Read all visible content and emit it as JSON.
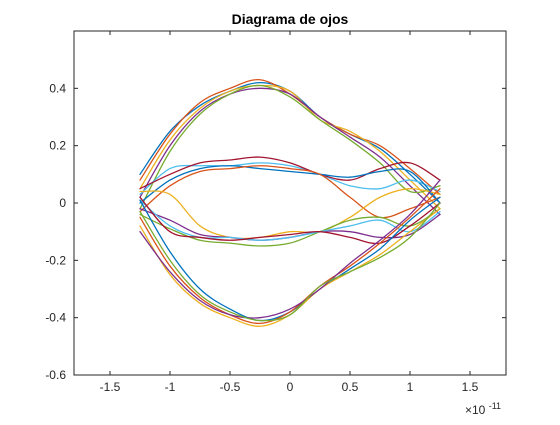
{
  "chart_data": {
    "type": "line",
    "title": "Diagrama de ojos",
    "xlabel": "",
    "ylabel": "",
    "x_multiplier_label": "×10",
    "x_multiplier_exponent": "-11",
    "xlim": [
      -1.8,
      1.8
    ],
    "ylim": [
      -0.6,
      0.6
    ],
    "xticks": [
      -1.5,
      -1,
      -0.5,
      0,
      0.5,
      1,
      1.5
    ],
    "xtick_labels": [
      "-1.5",
      "-1",
      "-0.5",
      "0",
      "0.5",
      "1",
      "1.5"
    ],
    "yticks": [
      -0.6,
      -0.4,
      -0.2,
      0,
      0.2,
      0.4
    ],
    "ytick_labels": [
      "-0.6",
      "-0.4",
      "-0.2",
      "0",
      "0.2",
      "0.4"
    ],
    "grid": false,
    "legend": "none",
    "box": true,
    "line_colors": [
      "#0072BD",
      "#D95319",
      "#EDB120",
      "#7E2F8E",
      "#77AC30",
      "#4DBEEE",
      "#A2142F"
    ],
    "series": [
      {
        "x": [
          -1.25,
          -1.0,
          -0.75,
          -0.5,
          -0.25,
          0.0,
          0.25,
          0.5,
          0.75,
          1.0,
          1.25
        ],
        "values": [
          0.1,
          0.25,
          0.34,
          0.39,
          0.42,
          0.39,
          0.3,
          0.24,
          0.19,
          0.1,
          0.0
        ]
      },
      {
        "x": [
          -1.25,
          -1.0,
          -0.75,
          -0.5,
          -0.25,
          0.0,
          0.25,
          0.5,
          0.75,
          1.0,
          1.25
        ],
        "values": [
          0.08,
          0.24,
          0.35,
          0.4,
          0.43,
          0.38,
          0.3,
          0.24,
          0.2,
          0.12,
          0.03
        ]
      },
      {
        "x": [
          -1.25,
          -1.0,
          -0.75,
          -0.5,
          -0.25,
          0.0,
          0.25,
          0.5,
          0.75,
          1.0,
          1.25
        ],
        "values": [
          0.05,
          0.22,
          0.33,
          0.39,
          0.41,
          0.39,
          0.29,
          0.25,
          0.18,
          0.08,
          -0.02
        ]
      },
      {
        "x": [
          -1.25,
          -1.0,
          -0.75,
          -0.5,
          -0.25,
          0.0,
          0.25,
          0.5,
          0.75,
          1.0,
          1.25
        ],
        "values": [
          0.02,
          0.2,
          0.32,
          0.38,
          0.4,
          0.38,
          0.3,
          0.23,
          0.16,
          0.06,
          -0.04
        ]
      },
      {
        "x": [
          -1.25,
          -1.0,
          -0.75,
          -0.5,
          -0.25,
          0.0,
          0.25,
          0.5,
          0.75,
          1.0,
          1.25
        ],
        "values": [
          -0.02,
          0.18,
          0.31,
          0.38,
          0.41,
          0.37,
          0.29,
          0.22,
          0.14,
          0.04,
          0.06
        ]
      },
      {
        "x": [
          -1.25,
          -1.0,
          -0.75,
          -0.5,
          -0.25,
          0.0,
          0.25,
          0.5,
          0.75,
          1.0,
          1.25
        ],
        "values": [
          0.03,
          0.12,
          0.13,
          0.13,
          0.14,
          0.13,
          0.1,
          0.06,
          0.05,
          0.08,
          0.04
        ]
      },
      {
        "x": [
          -1.25,
          -1.0,
          -0.75,
          -0.5,
          -0.25,
          0.0,
          0.25,
          0.5,
          0.75,
          1.0,
          1.25
        ],
        "values": [
          0.05,
          0.1,
          0.14,
          0.15,
          0.16,
          0.14,
          0.1,
          0.08,
          0.12,
          0.14,
          0.08
        ]
      },
      {
        "x": [
          -1.25,
          -1.0,
          -0.75,
          -0.5,
          -0.25,
          0.0,
          0.25,
          0.5,
          0.75,
          1.0,
          1.25
        ],
        "values": [
          0.0,
          0.08,
          0.12,
          0.13,
          0.12,
          0.11,
          0.1,
          0.09,
          0.11,
          0.11,
          0.0
        ]
      },
      {
        "x": [
          -1.25,
          -1.0,
          -0.75,
          -0.5,
          -0.25,
          0.0,
          0.25,
          0.5,
          0.75,
          1.0,
          1.25
        ],
        "values": [
          -0.03,
          0.06,
          0.11,
          0.12,
          0.13,
          0.12,
          0.1,
          0.02,
          -0.05,
          -0.02,
          0.02
        ]
      },
      {
        "x": [
          -1.25,
          -1.0,
          -0.75,
          -0.5,
          -0.25,
          0.0,
          0.25,
          0.5,
          0.75,
          1.0,
          1.25
        ],
        "values": [
          0.04,
          0.03,
          -0.08,
          -0.12,
          -0.12,
          -0.1,
          -0.1,
          -0.05,
          0.02,
          0.05,
          0.03
        ]
      },
      {
        "x": [
          -1.25,
          -1.0,
          -0.75,
          -0.5,
          -0.25,
          0.0,
          0.25,
          0.5,
          0.75,
          1.0,
          1.25
        ],
        "values": [
          -0.02,
          -0.06,
          -0.11,
          -0.12,
          -0.13,
          -0.12,
          -0.1,
          -0.1,
          -0.12,
          -0.11,
          -0.04
        ]
      },
      {
        "x": [
          -1.25,
          -1.0,
          -0.75,
          -0.5,
          -0.25,
          0.0,
          0.25,
          0.5,
          0.75,
          1.0,
          1.25
        ],
        "values": [
          -0.04,
          -0.09,
          -0.13,
          -0.14,
          -0.15,
          -0.14,
          -0.1,
          -0.06,
          -0.05,
          -0.08,
          -0.02
        ]
      },
      {
        "x": [
          -1.25,
          -1.0,
          -0.75,
          -0.5,
          -0.25,
          0.0,
          0.25,
          0.5,
          0.75,
          1.0,
          1.25
        ],
        "values": [
          0.01,
          -0.08,
          -0.12,
          -0.12,
          -0.13,
          -0.12,
          -0.1,
          -0.08,
          -0.06,
          -0.1,
          -0.03
        ]
      },
      {
        "x": [
          -1.25,
          -1.0,
          -0.75,
          -0.5,
          -0.25,
          0.0,
          0.25,
          0.5,
          0.75,
          1.0,
          1.25
        ],
        "values": [
          0.02,
          -0.1,
          -0.12,
          -0.13,
          -0.12,
          -0.11,
          -0.1,
          -0.12,
          -0.14,
          -0.08,
          0.0
        ]
      },
      {
        "x": [
          -1.25,
          -1.0,
          -0.75,
          -0.5,
          -0.25,
          0.0,
          0.25,
          0.5,
          0.75,
          1.0,
          1.25
        ],
        "values": [
          0.01,
          -0.17,
          -0.3,
          -0.37,
          -0.41,
          -0.38,
          -0.3,
          -0.23,
          -0.16,
          -0.06,
          0.02
        ]
      },
      {
        "x": [
          -1.25,
          -1.0,
          -0.75,
          -0.5,
          -0.25,
          0.0,
          0.25,
          0.5,
          0.75,
          1.0,
          1.25
        ],
        "values": [
          -0.05,
          -0.22,
          -0.33,
          -0.39,
          -0.42,
          -0.38,
          -0.29,
          -0.22,
          -0.14,
          -0.05,
          0.05
        ]
      },
      {
        "x": [
          -1.25,
          -1.0,
          -0.75,
          -0.5,
          -0.25,
          0.0,
          0.25,
          0.5,
          0.75,
          1.0,
          1.25
        ],
        "values": [
          -0.08,
          -0.25,
          -0.35,
          -0.4,
          -0.43,
          -0.39,
          -0.3,
          -0.24,
          -0.18,
          -0.1,
          -0.02
        ]
      },
      {
        "x": [
          -1.25,
          -1.0,
          -0.75,
          -0.5,
          -0.25,
          0.0,
          0.25,
          0.5,
          0.75,
          1.0,
          1.25
        ],
        "values": [
          -0.1,
          -0.24,
          -0.34,
          -0.39,
          -0.4,
          -0.37,
          -0.3,
          -0.21,
          -0.13,
          -0.04,
          0.08
        ]
      },
      {
        "x": [
          -1.25,
          -1.0,
          -0.75,
          -0.5,
          -0.25,
          0.0,
          0.25,
          0.5,
          0.75,
          1.0,
          1.25
        ],
        "values": [
          -0.03,
          -0.2,
          -0.32,
          -0.38,
          -0.41,
          -0.39,
          -0.29,
          -0.24,
          -0.19,
          -0.12,
          0.0
        ]
      }
    ]
  }
}
